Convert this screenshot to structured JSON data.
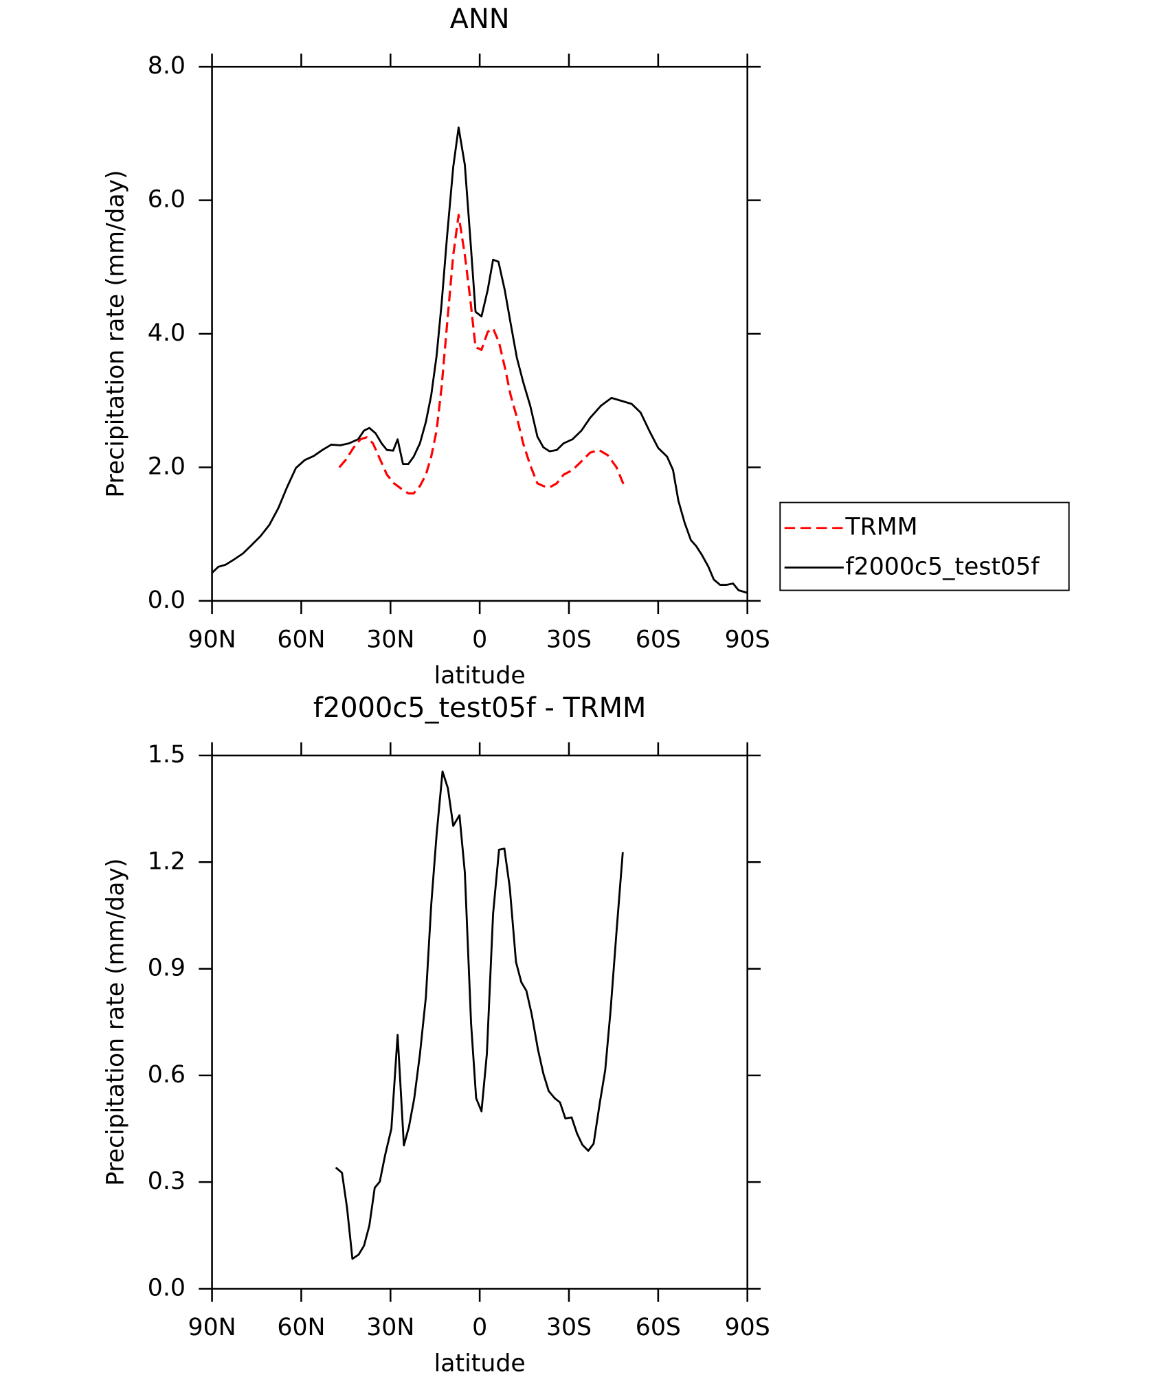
{
  "chart_data": [
    {
      "type": "line",
      "title": "ANN",
      "xlabel": "latitude",
      "ylabel": "Precipitation rate (mm/day)",
      "xlim": [
        90,
        -90
      ],
      "xticks": [
        {
          "value": 90,
          "label": "90N"
        },
        {
          "value": 60,
          "label": "60N"
        },
        {
          "value": 30,
          "label": "30N"
        },
        0,
        {
          "value": -30,
          "label": "30S"
        },
        {
          "value": -60,
          "label": "60S"
        },
        {
          "value": -90,
          "label": "90S"
        }
      ],
      "ylim": [
        0,
        8
      ],
      "yticks": [
        {
          "value": 0,
          "label": "0.0"
        },
        {
          "value": 2,
          "label": "2.0"
        },
        {
          "value": 4,
          "label": "4.0"
        },
        {
          "value": 6,
          "label": "6.0"
        },
        {
          "value": 8,
          "label": "8.0"
        }
      ],
      "legend": "right",
      "series": [
        {
          "name": "TRMM",
          "color": "#ff0000",
          "dashed": true,
          "x": [
            47.2,
            44.9,
            42.5,
            40.1,
            38.0,
            35.9,
            33.6,
            31.2,
            28.8,
            26.4,
            24.0,
            22.2,
            20.1,
            18.1,
            16.3,
            14.5,
            12.8,
            11.0,
            8.9,
            7.1,
            5.0,
            3.2,
            1.4,
            -0.6,
            -2.7,
            -4.5,
            -6.5,
            -8.6,
            -10.4,
            -12.5,
            -14.6,
            -17.0,
            -19.4,
            -21.4,
            -23.5,
            -25.9,
            -28.2,
            -31.2,
            -34.2,
            -37.1,
            -40.1,
            -43.1,
            -46.0,
            -48.4
          ],
          "values": [
            2.0,
            2.12,
            2.29,
            2.42,
            2.45,
            2.36,
            2.13,
            1.89,
            1.76,
            1.68,
            1.61,
            1.61,
            1.72,
            1.89,
            2.16,
            2.55,
            3.21,
            4.13,
            5.18,
            5.78,
            5.18,
            4.53,
            3.8,
            3.76,
            4.03,
            4.08,
            3.87,
            3.47,
            3.08,
            2.75,
            2.36,
            2.03,
            1.76,
            1.72,
            1.7,
            1.76,
            1.89,
            1.96,
            2.09,
            2.22,
            2.26,
            2.18,
            2.0,
            1.74
          ]
        },
        {
          "name": "f2000c5_test05f",
          "color": "#000000",
          "dashed": false,
          "x": [
            90,
            87.9,
            85.5,
            82.6,
            79.6,
            76.6,
            73.7,
            70.7,
            67.7,
            64.8,
            61.8,
            58.8,
            55.8,
            52.9,
            49.9,
            46.9,
            43.9,
            40.9,
            38.9,
            37.1,
            35.0,
            33.0,
            31.2,
            29.1,
            27.6,
            25.8,
            24.0,
            22.2,
            20.1,
            18.1,
            16.3,
            14.5,
            12.8,
            11.0,
            8.9,
            7.1,
            5.0,
            3.2,
            1.4,
            -0.6,
            -2.7,
            -4.5,
            -6.3,
            -8.4,
            -10.5,
            -12.5,
            -14.6,
            -17.0,
            -19.4,
            -21.4,
            -23.5,
            -25.9,
            -28.2,
            -31.2,
            -34.2,
            -37.1,
            -40.7,
            -44.3,
            -48.1,
            -51.1,
            -54.1,
            -57.0,
            -60.0,
            -63.0,
            -65.0,
            -66.8,
            -68.9,
            -71.0,
            -72.8,
            -74.8,
            -76.9,
            -78.7,
            -80.8,
            -82.9,
            -85.2,
            -87.0,
            -90
          ],
          "values": [
            0.42,
            0.51,
            0.54,
            0.62,
            0.71,
            0.84,
            0.97,
            1.14,
            1.39,
            1.7,
            1.99,
            2.11,
            2.17,
            2.26,
            2.34,
            2.33,
            2.36,
            2.42,
            2.55,
            2.59,
            2.51,
            2.36,
            2.26,
            2.25,
            2.42,
            2.05,
            2.05,
            2.16,
            2.36,
            2.68,
            3.08,
            3.67,
            4.46,
            5.45,
            6.5,
            7.09,
            6.53,
            5.45,
            4.33,
            4.26,
            4.66,
            5.11,
            5.08,
            4.66,
            4.13,
            3.64,
            3.28,
            2.92,
            2.46,
            2.3,
            2.24,
            2.26,
            2.36,
            2.42,
            2.55,
            2.74,
            2.92,
            3.04,
            2.99,
            2.95,
            2.82,
            2.55,
            2.29,
            2.16,
            1.96,
            1.5,
            1.17,
            0.91,
            0.82,
            0.68,
            0.51,
            0.32,
            0.24,
            0.24,
            0.26,
            0.16,
            0.12
          ]
        }
      ]
    },
    {
      "type": "line",
      "title": "f2000c5_test05f - TRMM",
      "xlabel": "latitude",
      "ylabel": "Precipitation rate (mm/day)",
      "xlim": [
        90,
        -90
      ],
      "xticks": [
        {
          "value": 90,
          "label": "90N"
        },
        {
          "value": 60,
          "label": "60N"
        },
        {
          "value": 30,
          "label": "30N"
        },
        0,
        {
          "value": -30,
          "label": "30S"
        },
        {
          "value": -60,
          "label": "60S"
        },
        {
          "value": -90,
          "label": "90S"
        }
      ],
      "ylim": [
        0,
        1.5
      ],
      "yticks": [
        {
          "value": 0,
          "label": "0.0"
        },
        0.3,
        0.6,
        0.9,
        1.2,
        1.5
      ],
      "series": [
        {
          "color": "#000000",
          "dashed": false,
          "x": [
            48.4,
            46.3,
            44.6,
            42.8,
            40.7,
            38.9,
            37.1,
            35.3,
            33.6,
            31.8,
            29.7,
            27.6,
            25.5,
            23.8,
            22.0,
            20.1,
            18.1,
            16.3,
            14.5,
            12.5,
            10.7,
            8.9,
            6.8,
            5.0,
            2.9,
            1.2,
            -0.6,
            -2.4,
            -4.5,
            -6.5,
            -8.3,
            -10.1,
            -12.2,
            -14.0,
            -15.7,
            -17.5,
            -19.6,
            -21.4,
            -23.2,
            -25.2,
            -27.0,
            -28.8,
            -30.9,
            -32.7,
            -34.5,
            -36.5,
            -38.3,
            -40.4,
            -42.2,
            -44.0,
            -46.0,
            -48.1
          ],
          "values": [
            0.341,
            0.326,
            0.227,
            0.084,
            0.096,
            0.121,
            0.178,
            0.284,
            0.301,
            0.376,
            0.45,
            0.714,
            0.403,
            0.455,
            0.536,
            0.66,
            0.82,
            1.08,
            1.277,
            1.455,
            1.408,
            1.302,
            1.332,
            1.171,
            0.746,
            0.536,
            0.499,
            0.66,
            1.055,
            1.235,
            1.238,
            1.129,
            0.919,
            0.862,
            0.838,
            0.771,
            0.672,
            0.605,
            0.556,
            0.536,
            0.524,
            0.479,
            0.482,
            0.437,
            0.405,
            0.388,
            0.408,
            0.524,
            0.615,
            0.783,
            1.005,
            1.228
          ]
        }
      ]
    }
  ]
}
